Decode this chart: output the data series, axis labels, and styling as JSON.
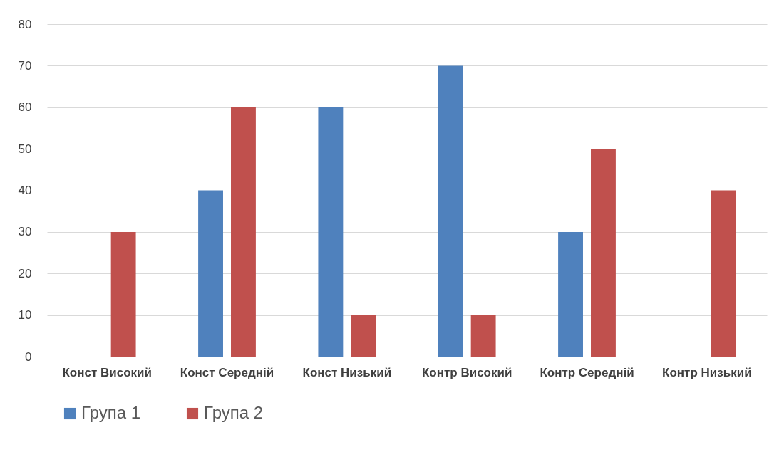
{
  "chart_data": {
    "type": "bar",
    "categories": [
      "Конст Високий",
      "Конст Середній",
      "Конст Низький",
      "Контр Високий",
      "Контр Середній",
      "Контр Низький"
    ],
    "series": [
      {
        "name": "Група 1",
        "color": "#4f81bd",
        "values": [
          0,
          40,
          60,
          70,
          30,
          0
        ]
      },
      {
        "name": "Група 2",
        "color": "#c0504d",
        "values": [
          30,
          60,
          10,
          10,
          50,
          40
        ]
      }
    ],
    "ylim": [
      0,
      80
    ],
    "yticks": [
      0,
      10,
      20,
      30,
      40,
      50,
      60,
      70,
      80
    ],
    "grid": "y",
    "legend": "bottom"
  }
}
